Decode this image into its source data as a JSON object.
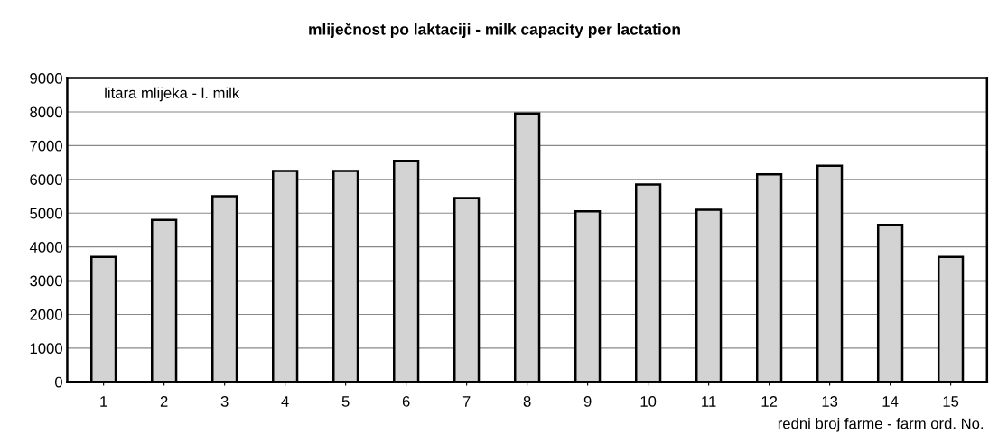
{
  "chart_data": {
    "type": "bar",
    "title": "mliječnost po laktaciji - milk capacity per lactation",
    "xlabel": "redni broj farme - farm ord. No.",
    "annotations": [
      "litara mlijeka - l. milk"
    ],
    "categories": [
      "1",
      "2",
      "3",
      "4",
      "5",
      "6",
      "7",
      "8",
      "9",
      "10",
      "11",
      "12",
      "13",
      "14",
      "15"
    ],
    "values": [
      3700,
      4800,
      5500,
      6250,
      6250,
      6550,
      5450,
      7950,
      5050,
      5850,
      5100,
      6150,
      6400,
      4650,
      3700
    ],
    "color": "#d3d3d3",
    "ylim": [
      0,
      9000
    ],
    "yticks": [
      0,
      1000,
      2000,
      3000,
      4000,
      5000,
      6000,
      7000,
      8000,
      9000
    ],
    "grid": "y",
    "legend": false
  }
}
